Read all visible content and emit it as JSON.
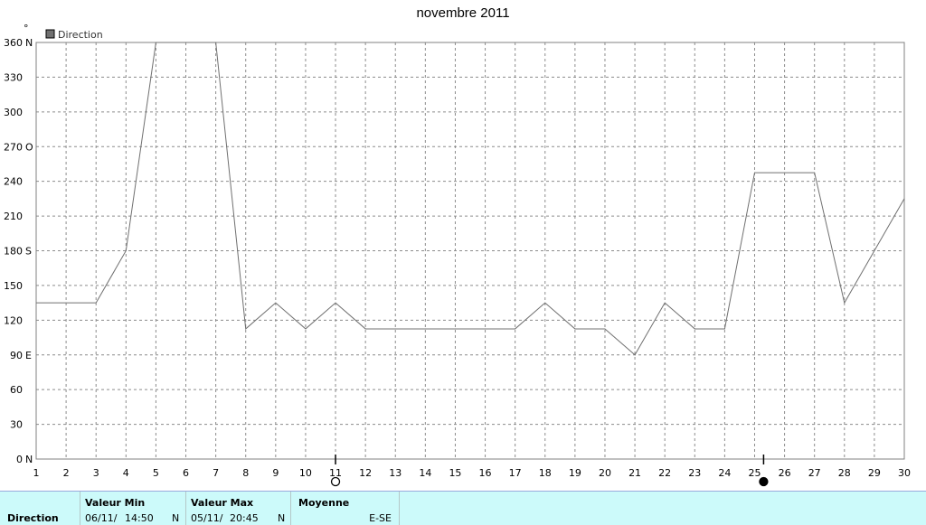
{
  "chart_data": {
    "type": "line",
    "title": "novembre 2011",
    "ylabel": "°",
    "legend": {
      "label": "Direction",
      "position": "top-left",
      "color": "#707070"
    },
    "ylim": [
      0,
      360
    ],
    "xlim": [
      1,
      30
    ],
    "x_ticks": [
      1,
      2,
      3,
      4,
      5,
      6,
      7,
      8,
      9,
      10,
      11,
      12,
      13,
      14,
      15,
      16,
      17,
      18,
      19,
      20,
      21,
      22,
      23,
      24,
      25,
      26,
      27,
      28,
      29,
      30
    ],
    "y_ticks": [
      {
        "value": 0,
        "label": "0"
      },
      {
        "value": 30,
        "label": "30"
      },
      {
        "value": 60,
        "label": "60"
      },
      {
        "value": 90,
        "label": "90"
      },
      {
        "value": 120,
        "label": "120"
      },
      {
        "value": 150,
        "label": "150"
      },
      {
        "value": 180,
        "label": "180"
      },
      {
        "value": 210,
        "label": "210"
      },
      {
        "value": 240,
        "label": "240"
      },
      {
        "value": 270,
        "label": "270"
      },
      {
        "value": 300,
        "label": "300"
      },
      {
        "value": 330,
        "label": "330"
      },
      {
        "value": 360,
        "label": "360"
      }
    ],
    "compass_labels": [
      {
        "value": 0,
        "label": "N"
      },
      {
        "value": 90,
        "label": "E"
      },
      {
        "value": 180,
        "label": "S"
      },
      {
        "value": 270,
        "label": "O"
      },
      {
        "value": 360,
        "label": "N"
      }
    ],
    "grid": true,
    "series": [
      {
        "name": "Direction",
        "color": "#707070",
        "points": [
          [
            1,
            135
          ],
          [
            2,
            135
          ],
          [
            3,
            135
          ],
          [
            4,
            180
          ],
          [
            5,
            360
          ],
          [
            6,
            360
          ],
          [
            7,
            360
          ],
          [
            8,
            112.5
          ],
          [
            9,
            135
          ],
          [
            10,
            112.5
          ],
          [
            11,
            135
          ],
          [
            12,
            112.5
          ],
          [
            13,
            112.5
          ],
          [
            14,
            112.5
          ],
          [
            15,
            112.5
          ],
          [
            16,
            112.5
          ],
          [
            17,
            112.5
          ],
          [
            18,
            135
          ],
          [
            19,
            112.5
          ],
          [
            20,
            112.5
          ],
          [
            21,
            90
          ],
          [
            22,
            135
          ],
          [
            23,
            112.5
          ],
          [
            24,
            112.5
          ],
          [
            25,
            247.5
          ],
          [
            26,
            247.5
          ],
          [
            27,
            247.5
          ],
          [
            28,
            135
          ],
          [
            29,
            180
          ],
          [
            30,
            225
          ]
        ]
      }
    ],
    "moon_markers": [
      {
        "x": 11,
        "phase": "full-moon"
      },
      {
        "x": 25.3,
        "phase": "new-moon"
      }
    ]
  },
  "stats": {
    "row_label": "Direction",
    "min_header": "Valeur Min",
    "min_date": "06/11/",
    "min_time": "14:50",
    "min_value": "N",
    "max_header": "Valeur Max",
    "max_date": "05/11/",
    "max_time": "20:45",
    "max_value": "N",
    "avg_header": "Moyenne",
    "avg_value": "E-SE"
  }
}
